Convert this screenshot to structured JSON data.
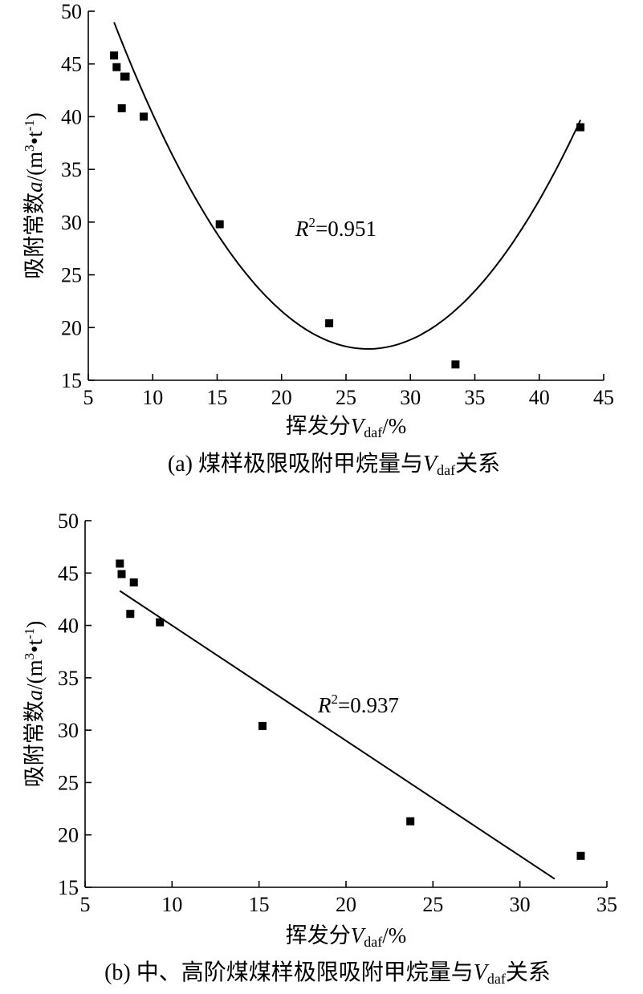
{
  "chart_data": [
    {
      "type": "scatter",
      "panel": "a",
      "x": [
        7.0,
        7.2,
        7.6,
        7.8,
        7.9,
        9.3,
        15.2,
        23.7,
        33.5,
        43.2
      ],
      "y": [
        45.8,
        44.7,
        40.8,
        43.8,
        43.8,
        40.0,
        29.8,
        20.4,
        16.5,
        39.0
      ],
      "fit": {
        "kind": "quadratic",
        "a": 0.0798,
        "b": -4.262,
        "c": 74.88,
        "x_range": [
          7.0,
          43.2
        ]
      },
      "r2_prefix": "R",
      "r2_sup": "2",
      "r2_value": "=0.951",
      "xlim": [
        5,
        45
      ],
      "ylim": [
        15,
        50
      ],
      "xticks": [
        "5",
        "10",
        "15",
        "20",
        "25",
        "30",
        "35",
        "40",
        "45"
      ],
      "yticks": [
        "15",
        "20",
        "25",
        "30",
        "35",
        "40",
        "45",
        "50"
      ],
      "xlabel": {
        "pre": "挥发分",
        "var": "V",
        "sub": "daf",
        "post": "/%"
      },
      "ylabel": {
        "pre": "吸附常数",
        "var": "a",
        "post1": "/(m",
        "sup1": "3",
        "mid": "•t",
        "sup2": "-1",
        "post2": ")"
      },
      "caption": {
        "pre": "(a) 煤样极限吸附甲烷量与",
        "var": "V",
        "sub": "daf",
        "post": "关系"
      }
    },
    {
      "type": "scatter",
      "panel": "b",
      "x": [
        7.0,
        7.1,
        7.6,
        7.8,
        9.3,
        15.2,
        23.7,
        33.5
      ],
      "y": [
        45.9,
        44.9,
        41.1,
        44.1,
        40.3,
        30.4,
        21.3,
        18.0
      ],
      "fit": {
        "kind": "linear",
        "slope": -1.1,
        "intercept": 51.0,
        "x_range": [
          7.0,
          32.0
        ]
      },
      "r2_prefix": "R",
      "r2_sup": "2",
      "r2_value": "=0.937",
      "xlim": [
        5,
        35
      ],
      "ylim": [
        15,
        50
      ],
      "xticks": [
        "5",
        "10",
        "15",
        "20",
        "25",
        "30",
        "35"
      ],
      "yticks": [
        "15",
        "20",
        "25",
        "30",
        "35",
        "40",
        "45",
        "50"
      ],
      "xlabel": {
        "pre": "挥发分",
        "var": "V",
        "sub": "daf",
        "post": "/%"
      },
      "ylabel": {
        "pre": "吸附常数",
        "var": "a",
        "post1": "/(m",
        "sup1": "3",
        "mid": "•t",
        "sup2": "-1",
        "post2": ")"
      },
      "caption": {
        "pre": "(b) 中、高阶煤煤样极限吸附甲烷量与",
        "var": "V",
        "sub": "daf",
        "post": "关系"
      }
    }
  ]
}
